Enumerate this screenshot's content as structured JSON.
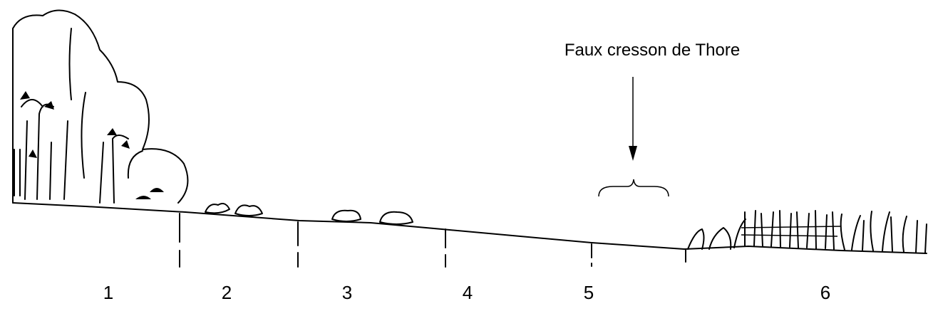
{
  "label": "Faux cresson de Thore",
  "zones": [
    "1",
    "2",
    "3",
    "4",
    "5",
    "6"
  ]
}
